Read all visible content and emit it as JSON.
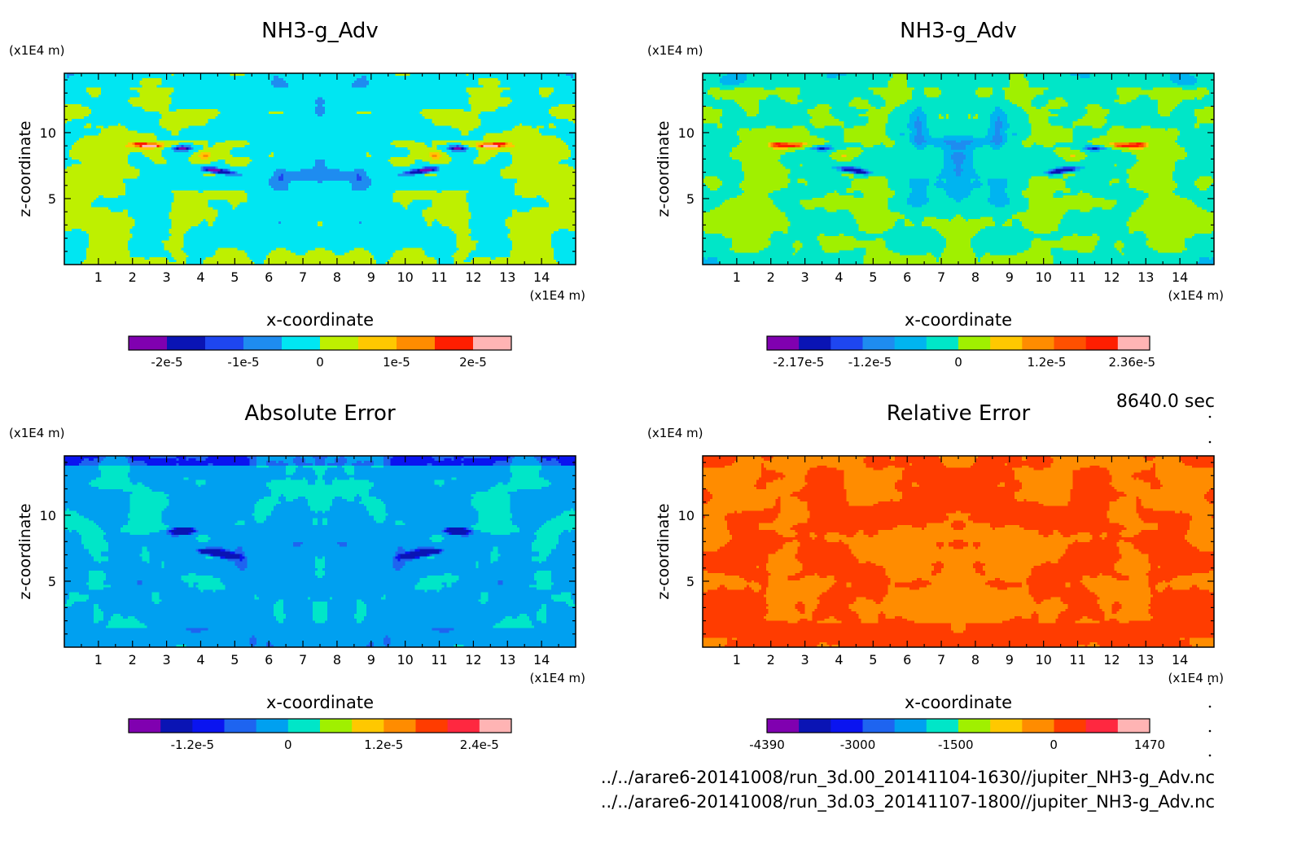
{
  "chart_data": [
    {
      "type": "heatmap",
      "title": "NH3-g_Adv",
      "xlabel": "x-coordinate",
      "ylabel": "z-coordinate",
      "x_unit": "(x1E4 m)",
      "y_unit": "(x1E4 m)",
      "xlim": [
        0,
        15
      ],
      "ylim": [
        0,
        14.5
      ],
      "x_ticks": [
        "1",
        "2",
        "3",
        "4",
        "5",
        "6",
        "7",
        "8",
        "9",
        "10",
        "11",
        "12",
        "13",
        "14"
      ],
      "y_ticks": [
        "5",
        "10"
      ],
      "background_color": "#00E6F2",
      "colorbar": {
        "colors": [
          "#8000B0",
          "#0A14B4",
          "#1E46F0",
          "#1E8CF0",
          "#00E6F2",
          "#BEF000",
          "#FFC800",
          "#FF8C00",
          "#FF1E00",
          "#FFB4B4"
        ],
        "tick_labels": [
          "-2e-5",
          "-1e-5",
          "0",
          "1e-5",
          "2e-5"
        ],
        "tick_values": [
          -2e-05,
          -1e-05,
          0,
          1e-05,
          2e-05
        ],
        "range": [
          -2.5e-05,
          2.5e-05
        ]
      }
    },
    {
      "type": "heatmap",
      "title": "NH3-g_Adv",
      "xlabel": "x-coordinate",
      "ylabel": "z-coordinate",
      "x_unit": "(x1E4 m)",
      "y_unit": "(x1E4 m)",
      "xlim": [
        0,
        15
      ],
      "ylim": [
        0,
        14.5
      ],
      "x_ticks": [
        "1",
        "2",
        "3",
        "4",
        "5",
        "6",
        "7",
        "8",
        "9",
        "10",
        "11",
        "12",
        "13",
        "14"
      ],
      "y_ticks": [
        "5",
        "10"
      ],
      "background_color": "#00E6C8",
      "colorbar": {
        "colors": [
          "#8000B0",
          "#0A14B4",
          "#1E46F0",
          "#1E8CF0",
          "#00B4F0",
          "#00E6C8",
          "#A0F000",
          "#FFC800",
          "#FF8C00",
          "#FF5000",
          "#FF1E00",
          "#FFB4B4"
        ],
        "tick_labels": [
          "-2.17e-5",
          "-1.2e-5",
          "0",
          "1.2e-5",
          "2.36e-5"
        ],
        "tick_values": [
          -2.17e-05,
          -1.2e-05,
          0,
          1.2e-05,
          2.36e-05
        ],
        "range": [
          -2.6e-05,
          2.6e-05
        ]
      }
    },
    {
      "type": "heatmap",
      "title": "Absolute Error",
      "xlabel": "x-coordinate",
      "ylabel": "z-coordinate",
      "x_unit": "(x1E4 m)",
      "y_unit": "(x1E4 m)",
      "xlim": [
        0,
        15
      ],
      "ylim": [
        0,
        14.5
      ],
      "x_ticks": [
        "1",
        "2",
        "3",
        "4",
        "5",
        "6",
        "7",
        "8",
        "9",
        "10",
        "11",
        "12",
        "13",
        "14"
      ],
      "y_ticks": [
        "5",
        "10"
      ],
      "background_color": "#00E6C8",
      "colorbar": {
        "colors": [
          "#8000B0",
          "#0A14B4",
          "#0A14F0",
          "#1E64F0",
          "#00A0F0",
          "#00E6C8",
          "#A0F000",
          "#FFC800",
          "#FF8C00",
          "#FF3C00",
          "#FF2840",
          "#FFB4B4"
        ],
        "tick_labels": [
          "-1.2e-5",
          "0",
          "1.2e-5",
          "2.4e-5"
        ],
        "tick_values": [
          -1.2e-05,
          0,
          1.2e-05,
          2.4e-05
        ],
        "range": [
          -2e-05,
          2.8e-05
        ]
      }
    },
    {
      "type": "heatmap",
      "title": "Relative Error",
      "xlabel": "x-coordinate",
      "ylabel": "z-coordinate",
      "x_unit": "(x1E4 m)",
      "y_unit": "(x1E4 m)",
      "xlim": [
        0,
        15
      ],
      "ylim": [
        0,
        14.5
      ],
      "x_ticks": [
        "1",
        "2",
        "3",
        "4",
        "5",
        "6",
        "7",
        "8",
        "9",
        "10",
        "11",
        "12",
        "13",
        "14"
      ],
      "y_ticks": [
        "5",
        "10"
      ],
      "background_color": "#FF3C00",
      "colorbar": {
        "colors": [
          "#8000B0",
          "#0A14B4",
          "#0A14F0",
          "#1E64F0",
          "#00A0F0",
          "#00E6C8",
          "#A0F000",
          "#FFC800",
          "#FF8C00",
          "#FF3C00",
          "#FF2840",
          "#FFB4B4"
        ],
        "tick_labels": [
          "-4390",
          "-3000",
          "-1500",
          "0",
          "1470"
        ],
        "tick_values": [
          -4390,
          -3000,
          -1500,
          0,
          1470
        ],
        "range": [
          -4390,
          1470
        ]
      }
    }
  ],
  "time_label": "8640.0 sec",
  "file_paths": [
    "../../arare6-20141008/run_3d.00_20141104-1630//jupiter_NH3-g_Adv.nc",
    "../../arare6-20141008/run_3d.03_20141107-1800//jupiter_NH3-g_Adv.nc"
  ]
}
